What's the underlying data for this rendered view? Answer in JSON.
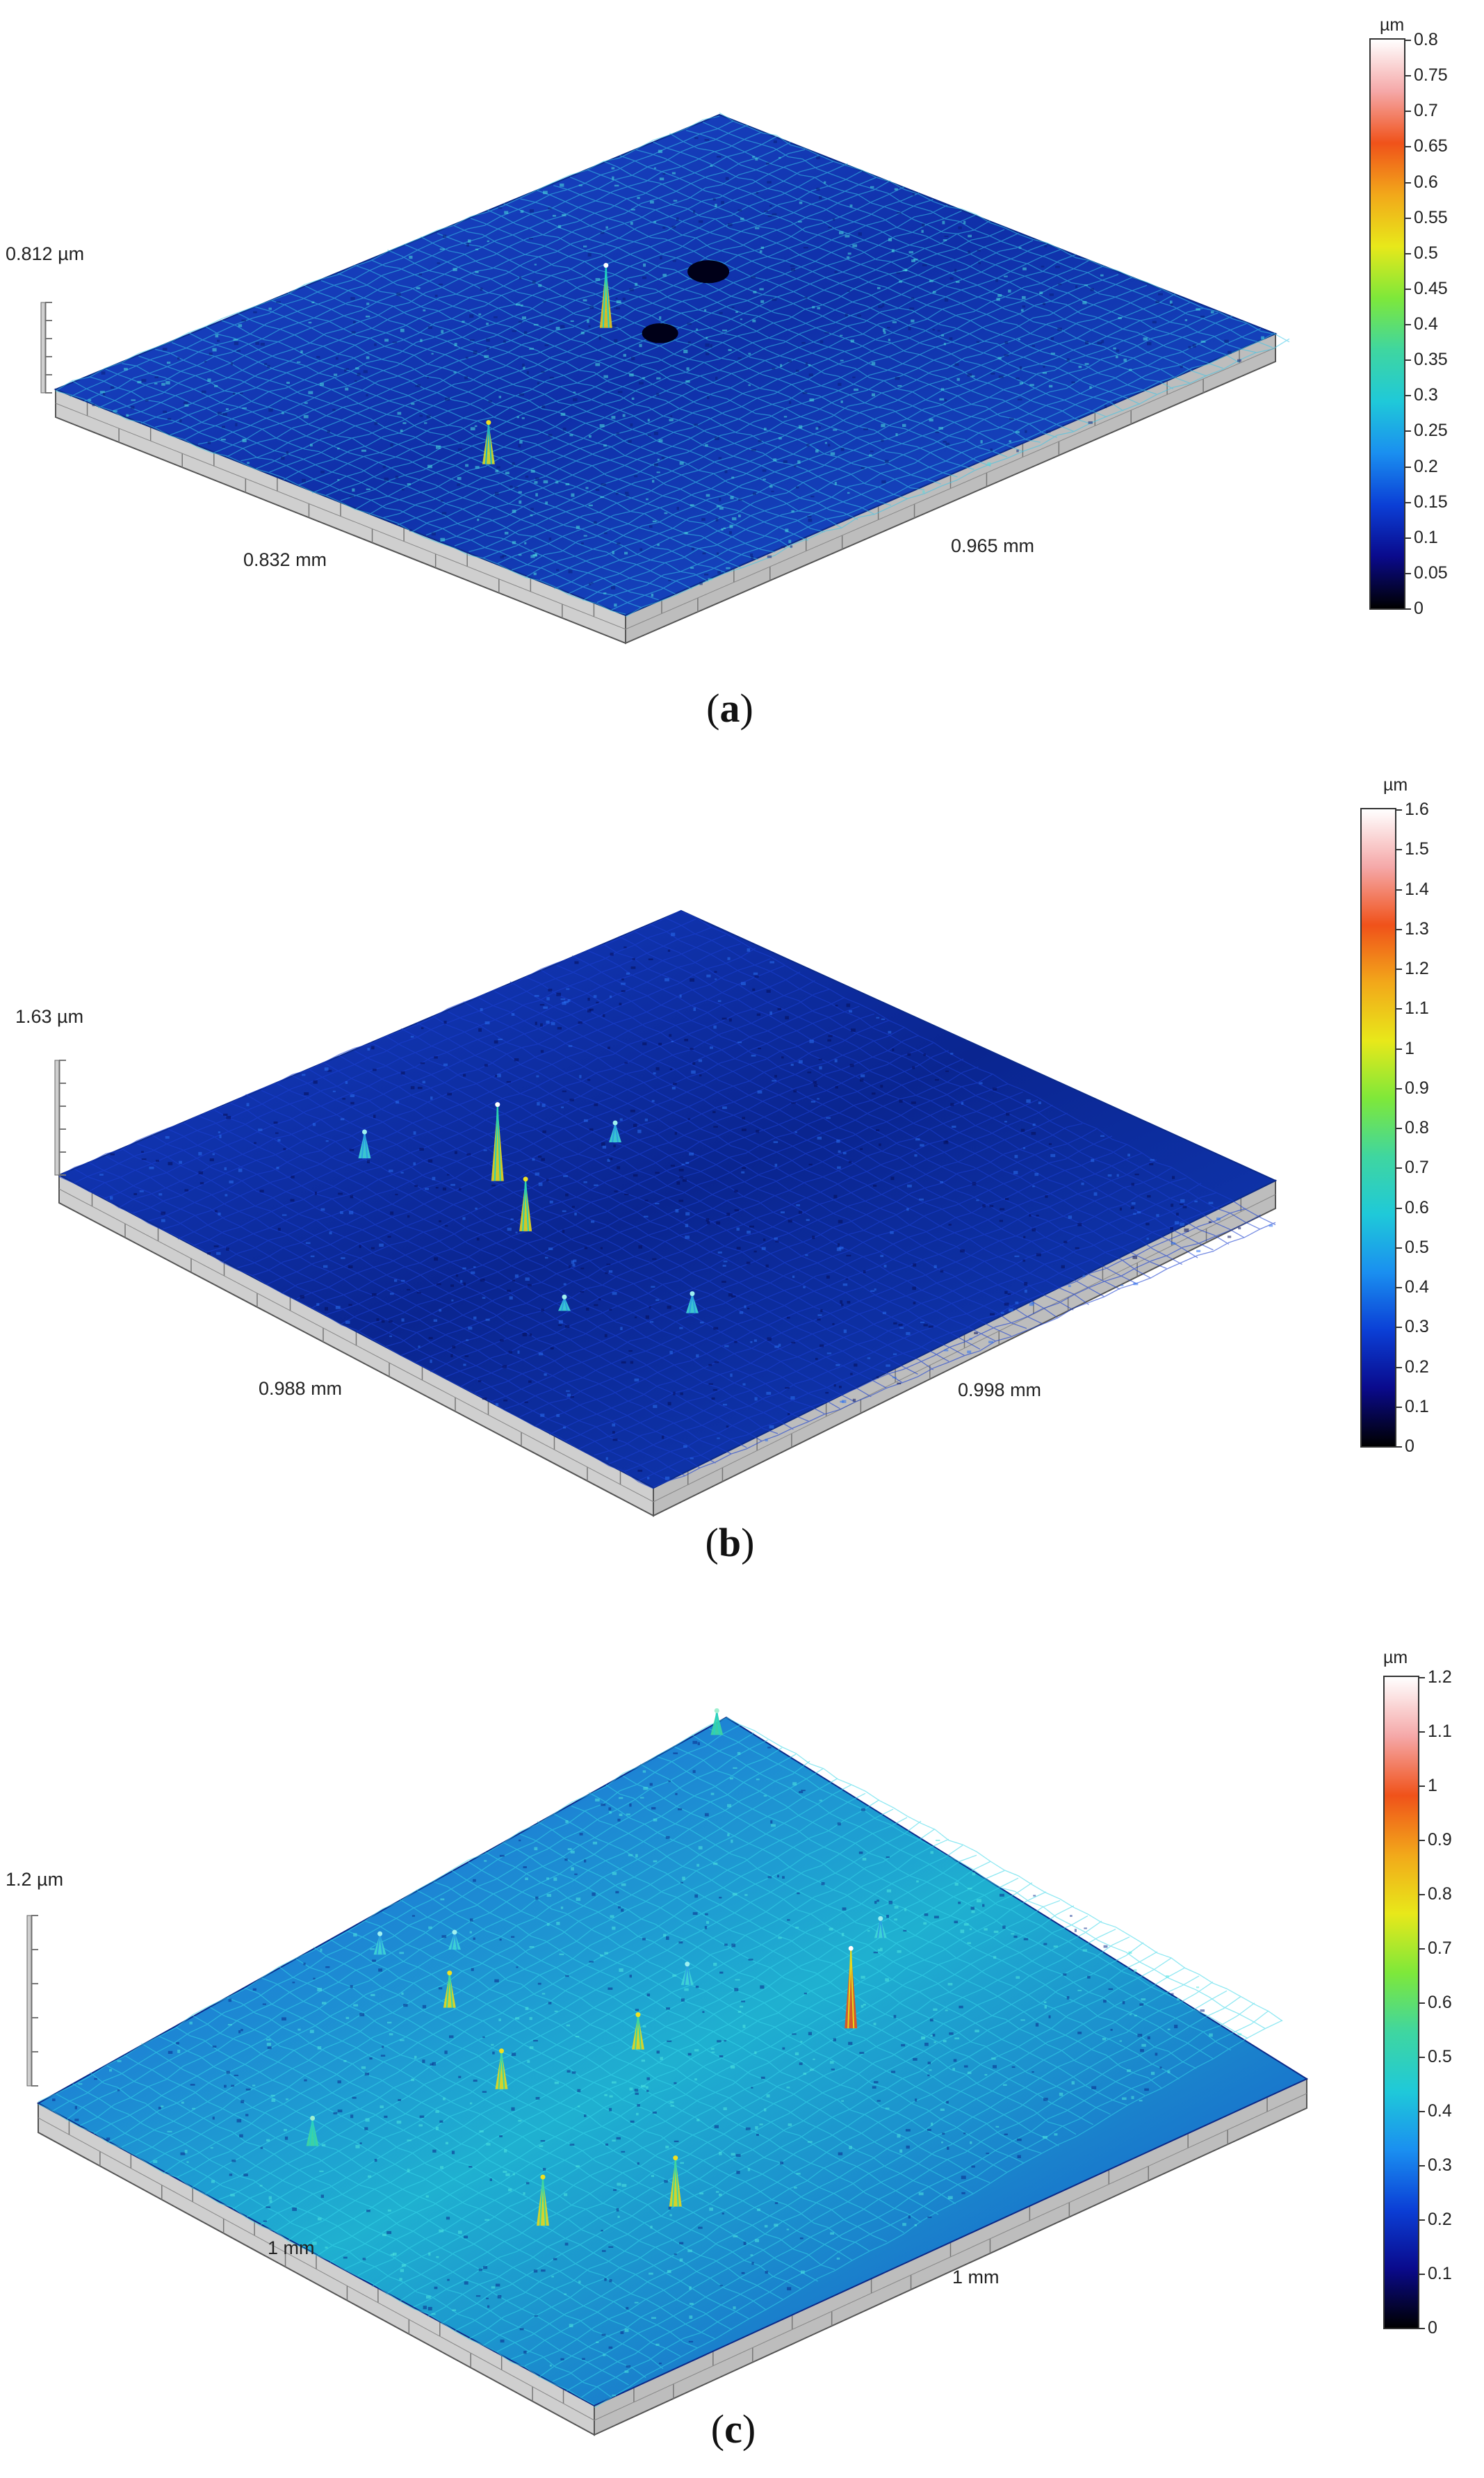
{
  "colorscale": [
    "#000000",
    "#0a0a8c",
    "#0b3fd6",
    "#1a8ff0",
    "#1fc9d9",
    "#3fd6a0",
    "#7ee83a",
    "#e8e81a",
    "#f2a81a",
    "#f0521a",
    "#f5a8a8",
    "#ffffff"
  ],
  "panels": [
    {
      "id": "a",
      "caption_letter": "a",
      "height_label": "0.812 µm",
      "x_label": "0.832 mm",
      "y_label": "0.965 mm",
      "colorbar": {
        "unit": "µm",
        "ticks": [
          "0.8",
          "0.75",
          "0.7",
          "0.65",
          "0.6",
          "0.55",
          "0.5",
          "0.45",
          "0.4",
          "0.35",
          "0.3",
          "0.25",
          "0.2",
          "0.15",
          "0.1",
          "0.05",
          "0"
        ]
      }
    },
    {
      "id": "b",
      "caption_letter": "b",
      "height_label": "1.63 µm",
      "x_label": "0.988 mm",
      "y_label": "0.998 mm",
      "colorbar": {
        "unit": "µm",
        "ticks": [
          "1.6",
          "1.5",
          "1.4",
          "1.3",
          "1.2",
          "1.1",
          "1",
          "0.9",
          "0.8",
          "0.7",
          "0.6",
          "0.5",
          "0.4",
          "0.3",
          "0.2",
          "0.1",
          "0"
        ]
      }
    },
    {
      "id": "c",
      "caption_letter": "c",
      "height_label": "1.2 µm",
      "x_label": "1 mm",
      "y_label": "1 mm",
      "colorbar": {
        "unit": "µm",
        "ticks": [
          "1.2",
          "1.1",
          "1",
          "0.9",
          "0.8",
          "0.7",
          "0.6",
          "0.5",
          "0.4",
          "0.3",
          "0.2",
          "0.1",
          "0"
        ]
      }
    }
  ]
}
